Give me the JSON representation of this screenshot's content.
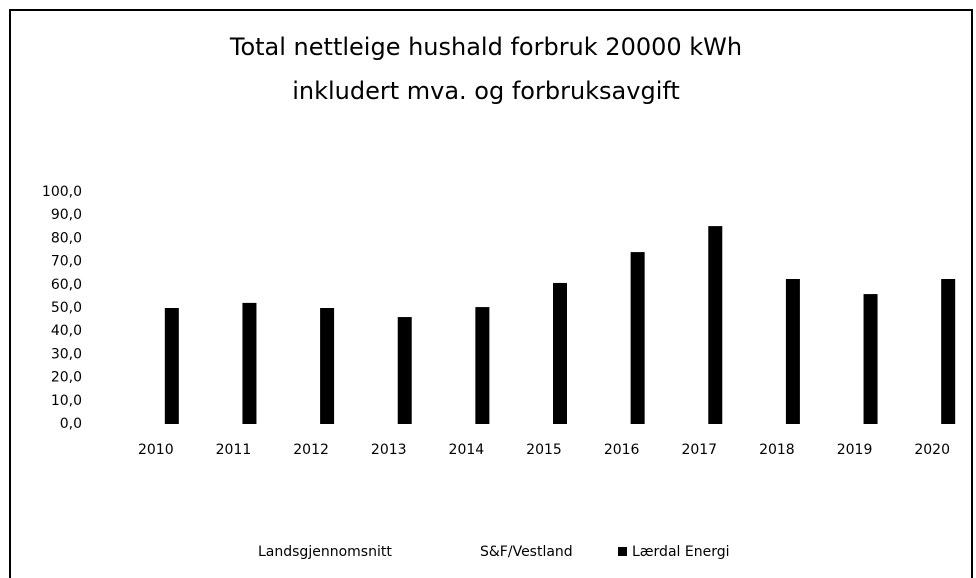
{
  "chart_data": {
    "type": "bar",
    "title": [
      "Total nettleige hushald forbruk 20000 kWh",
      "inkludert mva. og forbruksavgift"
    ],
    "categories": [
      "2010",
      "2011",
      "2012",
      "2013",
      "2014",
      "2015",
      "2016",
      "2017",
      "2018",
      "2019",
      "2020"
    ],
    "series": [
      {
        "name": "Landsgjennomsnitt",
        "color": "#ffffff",
        "values": [
          null,
          null,
          null,
          null,
          null,
          null,
          null,
          null,
          null,
          null,
          null
        ]
      },
      {
        "name": "S&F/Vestland",
        "color": "#ffffff",
        "values": [
          null,
          null,
          null,
          null,
          null,
          null,
          null,
          null,
          null,
          null,
          null
        ]
      },
      {
        "name": "Lærdal Energi",
        "color": "#000000",
        "values": [
          50.0,
          52.2,
          50.0,
          46.1,
          50.4,
          60.8,
          74.1,
          85.3,
          62.5,
          56.0,
          62.5
        ]
      }
    ],
    "ylim": [
      0,
      100
    ],
    "yticks": [
      {
        "value": 0,
        "label": "0,0"
      },
      {
        "value": 10,
        "label": "10,0"
      },
      {
        "value": 20,
        "label": "20,0"
      },
      {
        "value": 30,
        "label": "30,0"
      },
      {
        "value": 40,
        "label": "40,0"
      },
      {
        "value": 50,
        "label": "50,0"
      },
      {
        "value": 60,
        "label": "60,0"
      },
      {
        "value": 70,
        "label": "70,0"
      },
      {
        "value": 80,
        "label": "80,0"
      },
      {
        "value": 90,
        "label": "90,0"
      },
      {
        "value": 100,
        "label": "100,0"
      }
    ],
    "grid": false,
    "legend": "bottom"
  }
}
